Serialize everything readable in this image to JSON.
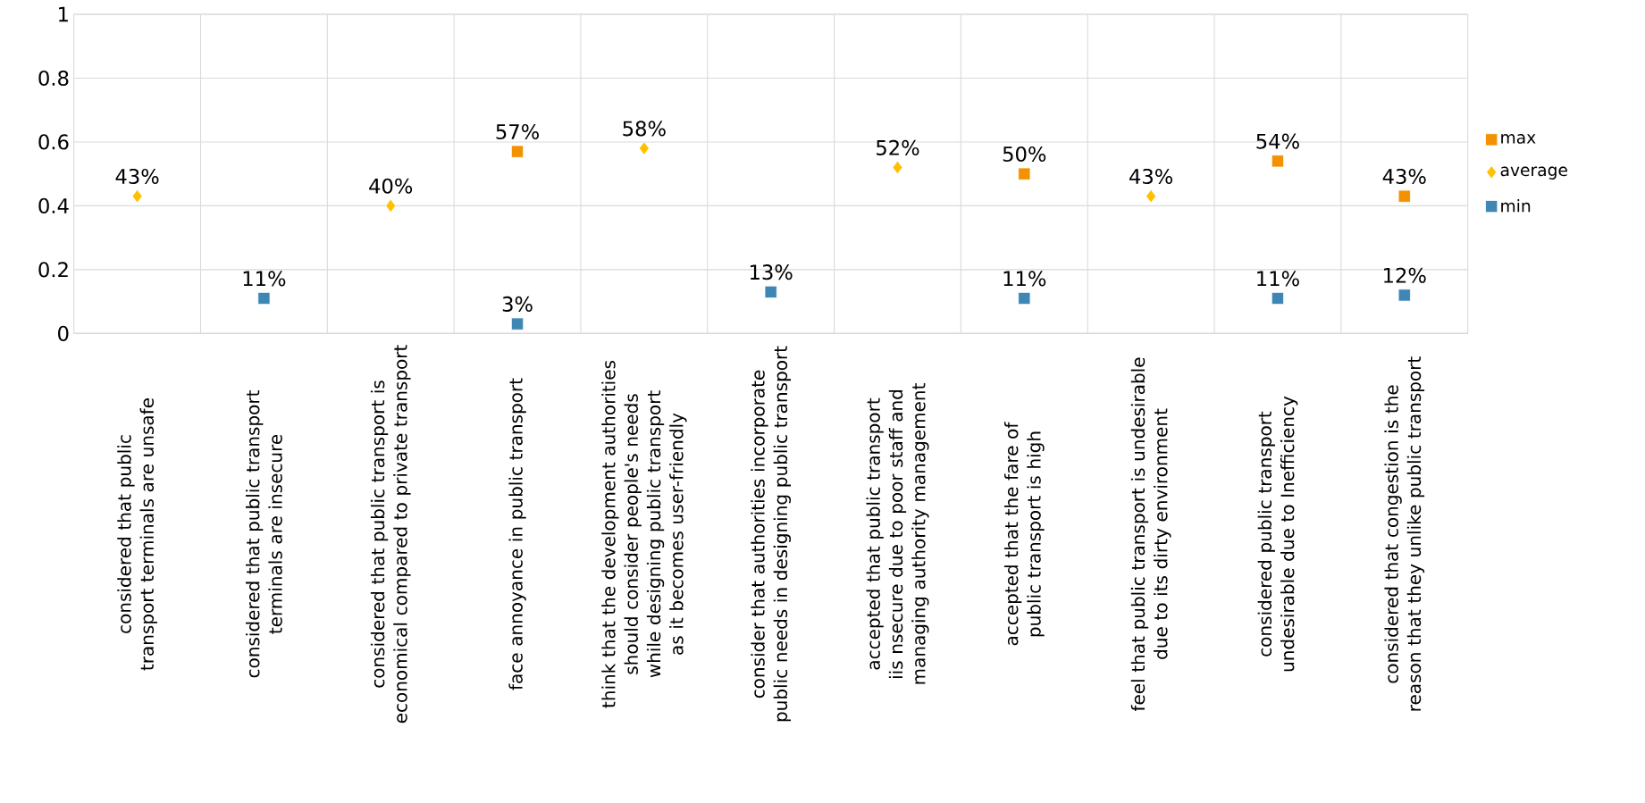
{
  "chart_data": {
    "type": "scatter",
    "categories": [
      "considered that public transport terminals are unsafe",
      "considered that public transport terminals are insecure",
      "considered that public transport is economical compared to private transport",
      "face annoyance in public transport",
      "think that the development authorities should consider people's needs while designing public transport as it becomes user-friendly",
      "consider that authorities incorporate public needs in designing public transport",
      "accepted that public transport iis nsecure due to poor staff and managing authority management",
      "accepted that the fare of public transport is high",
      "feel that public transport is undesirable due to its dirty environment",
      "considered public transport undesirable due to Inefficiency",
      "considered that congestion is the reason that they unlike public transport"
    ],
    "series": [
      {
        "name": "max",
        "color": "#f39200",
        "marker": "square",
        "values": [
          null,
          null,
          null,
          0.57,
          null,
          null,
          null,
          0.5,
          null,
          0.54,
          0.43
        ],
        "value_labels": [
          null,
          null,
          null,
          "57%",
          null,
          null,
          null,
          "50%",
          null,
          "54%",
          "43%"
        ]
      },
      {
        "name": "average",
        "color": "#ffc000",
        "marker": "diamond",
        "values": [
          0.43,
          null,
          0.4,
          null,
          0.58,
          null,
          0.52,
          null,
          0.43,
          null,
          null
        ],
        "value_labels": [
          "43%",
          null,
          "40%",
          null,
          "58%",
          null,
          "52%",
          null,
          "43%",
          null,
          null
        ]
      },
      {
        "name": "min",
        "color": "#3e87b5",
        "marker": "square",
        "values": [
          null,
          0.11,
          null,
          0.03,
          null,
          0.13,
          null,
          0.11,
          null,
          0.11,
          0.12
        ],
        "value_labels": [
          null,
          "11%",
          null,
          "3%",
          null,
          "13%",
          null,
          "11%",
          null,
          "11%",
          "12%"
        ]
      }
    ],
    "ylim": [
      0,
      1
    ],
    "yticks": [
      0,
      0.2,
      0.4,
      0.6,
      0.8,
      1
    ],
    "grid": true,
    "legend": "right"
  }
}
